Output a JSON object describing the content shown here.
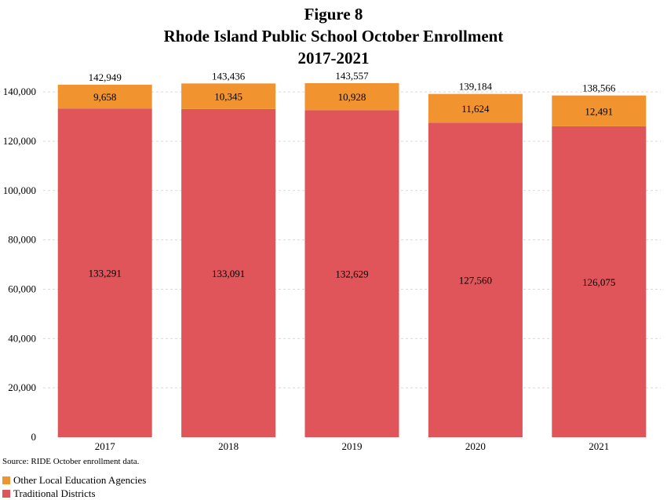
{
  "chart_data": {
    "type": "bar",
    "stacked": true,
    "title_lines": [
      "Figure 8",
      "Rhode Island Public School October Enrollment",
      "2017-2021"
    ],
    "categories": [
      "2017",
      "2018",
      "2019",
      "2020",
      "2021"
    ],
    "series": [
      {
        "name": "Traditional Districts",
        "color": "#e0555a",
        "values": [
          133291,
          133091,
          132629,
          127560,
          126075
        ],
        "labels": [
          "133,291",
          "133,091",
          "132,629",
          "127,560",
          "126,075"
        ]
      },
      {
        "name": "Other Local Education Agencies",
        "color": "#f1932e",
        "values": [
          9658,
          10345,
          10928,
          11624,
          12491
        ],
        "labels": [
          "9,658",
          "10,345",
          "10,928",
          "11,624",
          "12,491"
        ]
      }
    ],
    "totals": [
      142949,
      143436,
      143557,
      139184,
      138566
    ],
    "total_labels": [
      "142,949",
      "143,436",
      "143,557",
      "139,184",
      "138,566"
    ],
    "ylim": [
      0,
      148000
    ],
    "yticks": [
      0,
      20000,
      40000,
      60000,
      80000,
      100000,
      120000,
      140000
    ],
    "ytick_labels": [
      "0",
      "20,000",
      "40,000",
      "60,000",
      "80,000",
      "100,000",
      "120,000",
      "140,000"
    ],
    "grid": true,
    "legend_placement": "bottom-left",
    "source": "Source: RIDE October enrollment data."
  }
}
